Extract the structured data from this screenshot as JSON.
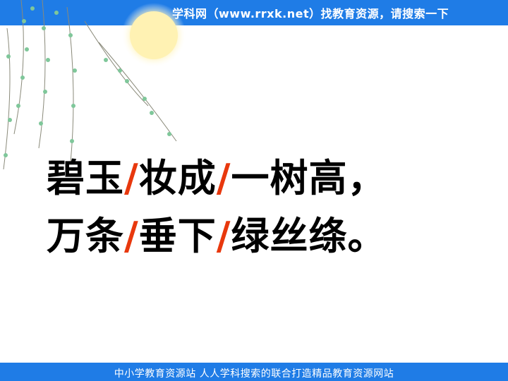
{
  "header": {
    "banner_text": "学科网（www.rrxk.net）找教育资源，请搜索一下"
  },
  "poem": {
    "line1": [
      "碧玉",
      "妆成",
      "一树高，"
    ],
    "line2": [
      "万条",
      "垂下",
      "绿丝绦。"
    ],
    "slash": "/"
  },
  "footer": {
    "text": "中小学教育资源站  人人学科搜索的联合打造精品教育资源网站"
  },
  "colors": {
    "banner": "#1f7ce6",
    "slash": "#e8380d",
    "sun": "#fff3b0",
    "leaf": "#7fc79a"
  }
}
